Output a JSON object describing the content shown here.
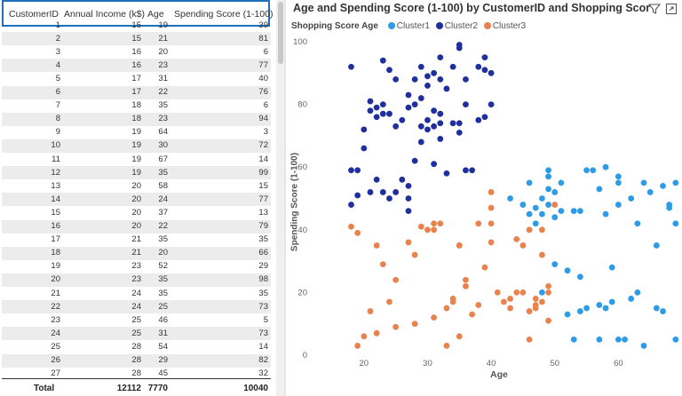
{
  "table": {
    "columns": [
      "CustomerID",
      "Annual Income (k$)",
      "Age",
      "Spending Score (1-100)"
    ],
    "rows": [
      [
        "1",
        "15",
        "19",
        "39"
      ],
      [
        "2",
        "15",
        "21",
        "81"
      ],
      [
        "3",
        "16",
        "20",
        "6"
      ],
      [
        "4",
        "16",
        "23",
        "77"
      ],
      [
        "5",
        "17",
        "31",
        "40"
      ],
      [
        "6",
        "17",
        "22",
        "76"
      ],
      [
        "7",
        "18",
        "35",
        "6"
      ],
      [
        "8",
        "18",
        "23",
        "94"
      ],
      [
        "9",
        "19",
        "64",
        "3"
      ],
      [
        "10",
        "19",
        "30",
        "72"
      ],
      [
        "11",
        "19",
        "67",
        "14"
      ],
      [
        "12",
        "19",
        "35",
        "99"
      ],
      [
        "13",
        "20",
        "58",
        "15"
      ],
      [
        "14",
        "20",
        "24",
        "77"
      ],
      [
        "15",
        "20",
        "37",
        "13"
      ],
      [
        "16",
        "20",
        "22",
        "79"
      ],
      [
        "17",
        "21",
        "35",
        "35"
      ],
      [
        "18",
        "21",
        "20",
        "66"
      ],
      [
        "19",
        "23",
        "52",
        "29"
      ],
      [
        "20",
        "23",
        "35",
        "98"
      ],
      [
        "21",
        "24",
        "35",
        "35"
      ],
      [
        "22",
        "24",
        "25",
        "73"
      ],
      [
        "23",
        "25",
        "46",
        "5"
      ],
      [
        "24",
        "25",
        "31",
        "73"
      ],
      [
        "25",
        "28",
        "54",
        "14"
      ],
      [
        "26",
        "28",
        "29",
        "82"
      ],
      [
        "27",
        "28",
        "45",
        "32"
      ]
    ],
    "total": {
      "label": "Total",
      "income": "12112",
      "age": "7770",
      "score": "10040"
    }
  },
  "chart": {
    "title": "Age and Spending Score (1-100) by CustomerID and Shopping Score Age",
    "legend_title": "Shopping Score Age",
    "icons": {
      "filter": "filter-icon",
      "focus": "focus-mode-icon"
    }
  },
  "chart_data": {
    "type": "scatter",
    "title": "Age and Spending Score (1-100) by CustomerID and Shopping Score Age",
    "xlabel": "Age",
    "ylabel": "Spending Score (1-100)",
    "xlim": [
      15,
      70
    ],
    "ylim": [
      0,
      100
    ],
    "xticks": [
      20,
      30,
      40,
      50,
      60
    ],
    "yticks": [
      0,
      20,
      40,
      60,
      80,
      100
    ],
    "series": [
      {
        "name": "Cluster1",
        "color": "#2e9be6",
        "points": [
          [
            43,
            50
          ],
          [
            45,
            48
          ],
          [
            46,
            45
          ],
          [
            46,
            55
          ],
          [
            47,
            42
          ],
          [
            47,
            47
          ],
          [
            48,
            50
          ],
          [
            48,
            45
          ],
          [
            49,
            59
          ],
          [
            49,
            57
          ],
          [
            49,
            53
          ],
          [
            49,
            48
          ],
          [
            50,
            44
          ],
          [
            50,
            52
          ],
          [
            50,
            29
          ],
          [
            51,
            55
          ],
          [
            51,
            46
          ],
          [
            52,
            27
          ],
          [
            52,
            13
          ],
          [
            53,
            46
          ],
          [
            54,
            46
          ],
          [
            54,
            14
          ],
          [
            55,
            59
          ],
          [
            56,
            59
          ],
          [
            57,
            53
          ],
          [
            57,
            16
          ],
          [
            58,
            60
          ],
          [
            58,
            15
          ],
          [
            58,
            45
          ],
          [
            59,
            17
          ],
          [
            59,
            28
          ],
          [
            60,
            55
          ],
          [
            60,
            57
          ],
          [
            60,
            48
          ],
          [
            61,
            5
          ],
          [
            63,
            42
          ],
          [
            64,
            3
          ],
          [
            64,
            55
          ],
          [
            65,
            52
          ],
          [
            66,
            35
          ],
          [
            67,
            14
          ],
          [
            67,
            54
          ],
          [
            68,
            47
          ],
          [
            68,
            48
          ],
          [
            69,
            42
          ],
          [
            69,
            55
          ],
          [
            69,
            5
          ],
          [
            62,
            50
          ],
          [
            48,
            20
          ],
          [
            53,
            5
          ],
          [
            54,
            25
          ],
          [
            55,
            15
          ],
          [
            57,
            5
          ],
          [
            60,
            5
          ],
          [
            62,
            18
          ],
          [
            63,
            20
          ],
          [
            66,
            15
          ]
        ]
      },
      {
        "name": "Cluster2",
        "color": "#1f2f9e",
        "points": [
          [
            18,
            92
          ],
          [
            18,
            59
          ],
          [
            18,
            48
          ],
          [
            19,
            51
          ],
          [
            19,
            59
          ],
          [
            20,
            72
          ],
          [
            20,
            66
          ],
          [
            21,
            81
          ],
          [
            21,
            78
          ],
          [
            21,
            52
          ],
          [
            22,
            79
          ],
          [
            22,
            76
          ],
          [
            22,
            56
          ],
          [
            23,
            94
          ],
          [
            23,
            77
          ],
          [
            23,
            80
          ],
          [
            23,
            52
          ],
          [
            24,
            77
          ],
          [
            24,
            91
          ],
          [
            24,
            50
          ],
          [
            25,
            73
          ],
          [
            25,
            88
          ],
          [
            25,
            52
          ],
          [
            26,
            75
          ],
          [
            26,
            56
          ],
          [
            27,
            79
          ],
          [
            27,
            83
          ],
          [
            27,
            54
          ],
          [
            27,
            50
          ],
          [
            27,
            46
          ],
          [
            28,
            62
          ],
          [
            28,
            88
          ],
          [
            28,
            80
          ],
          [
            29,
            82
          ],
          [
            29,
            73
          ],
          [
            29,
            92
          ],
          [
            29,
            68
          ],
          [
            30,
            72
          ],
          [
            30,
            89
          ],
          [
            30,
            86
          ],
          [
            30,
            75
          ],
          [
            31,
            73
          ],
          [
            31,
            78
          ],
          [
            31,
            90
          ],
          [
            31,
            61
          ],
          [
            32,
            77
          ],
          [
            32,
            88
          ],
          [
            32,
            69
          ],
          [
            32,
            74
          ],
          [
            32,
            95
          ],
          [
            33,
            58
          ],
          [
            33,
            85
          ],
          [
            34,
            74
          ],
          [
            34,
            92
          ],
          [
            35,
            99
          ],
          [
            35,
            98
          ],
          [
            35,
            74
          ],
          [
            35,
            71
          ],
          [
            36,
            88
          ],
          [
            36,
            80
          ],
          [
            36,
            59
          ],
          [
            37,
            59
          ],
          [
            38,
            75
          ],
          [
            38,
            92
          ],
          [
            39,
            95
          ],
          [
            39,
            91
          ],
          [
            39,
            76
          ],
          [
            40,
            90
          ],
          [
            40,
            80
          ]
        ]
      },
      {
        "name": "Cluster3",
        "color": "#e8834d",
        "points": [
          [
            18,
            41
          ],
          [
            19,
            39
          ],
          [
            20,
            6
          ],
          [
            21,
            14
          ],
          [
            22,
            35
          ],
          [
            23,
            29
          ],
          [
            24,
            17
          ],
          [
            25,
            9
          ],
          [
            25,
            24
          ],
          [
            27,
            36
          ],
          [
            28,
            32
          ],
          [
            29,
            41
          ],
          [
            30,
            40
          ],
          [
            31,
            40
          ],
          [
            31,
            42
          ],
          [
            32,
            42
          ],
          [
            33,
            15
          ],
          [
            34,
            18
          ],
          [
            34,
            17
          ],
          [
            35,
            6
          ],
          [
            35,
            35
          ],
          [
            35,
            35
          ],
          [
            36,
            24
          ],
          [
            36,
            22
          ],
          [
            37,
            13
          ],
          [
            38,
            16
          ],
          [
            38,
            42
          ],
          [
            39,
            28
          ],
          [
            40,
            42
          ],
          [
            40,
            47
          ],
          [
            40,
            52
          ],
          [
            40,
            36
          ],
          [
            41,
            20
          ],
          [
            42,
            17
          ],
          [
            43,
            15
          ],
          [
            43,
            18
          ],
          [
            44,
            20
          ],
          [
            44,
            37
          ],
          [
            45,
            35
          ],
          [
            45,
            20
          ],
          [
            46,
            5
          ],
          [
            46,
            14
          ],
          [
            46,
            40
          ],
          [
            47,
            18
          ],
          [
            47,
            16
          ],
          [
            47,
            15
          ],
          [
            48,
            17
          ],
          [
            48,
            40
          ],
          [
            48,
            32
          ],
          [
            49,
            20
          ],
          [
            49,
            11
          ],
          [
            49,
            22
          ],
          [
            50,
            48
          ],
          [
            19,
            3
          ],
          [
            22,
            7
          ],
          [
            28,
            10
          ],
          [
            31,
            12
          ],
          [
            33,
            3
          ]
        ]
      }
    ]
  }
}
